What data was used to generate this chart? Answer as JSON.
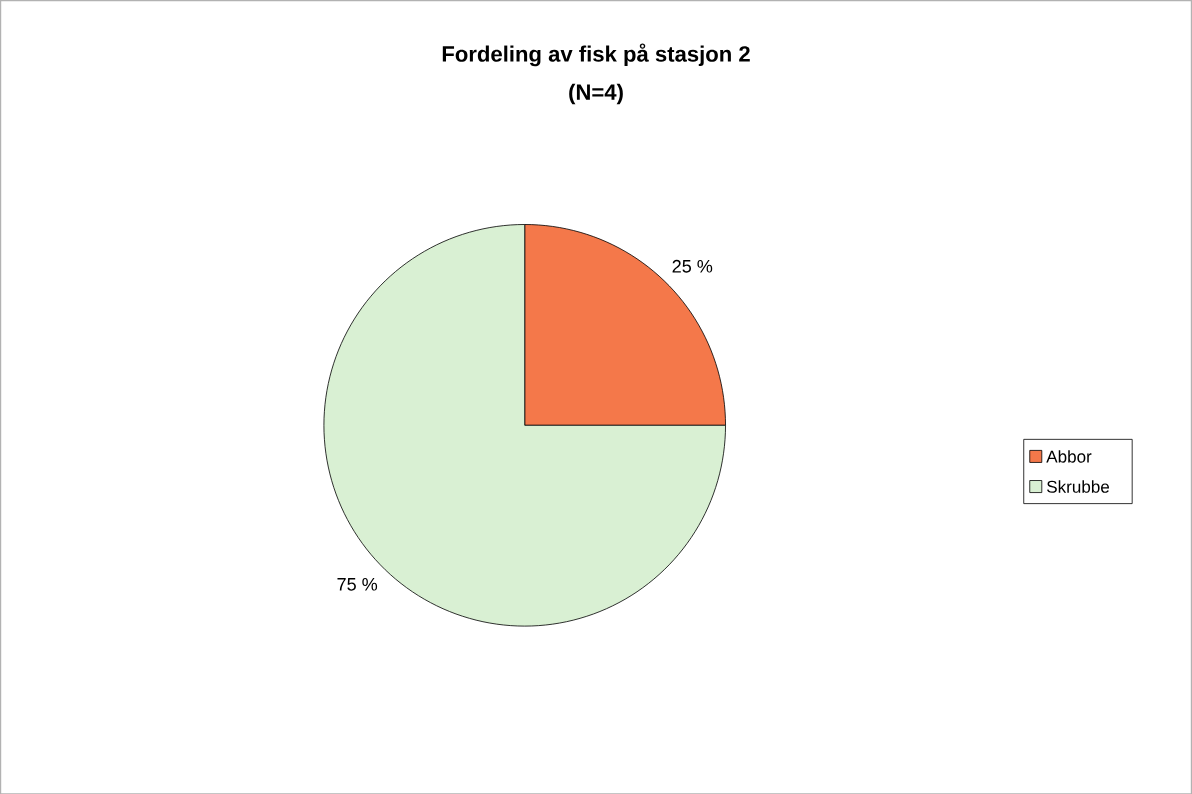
{
  "chart_data": {
    "type": "pie",
    "title": "Fordeling av fisk på stasjon 2",
    "subtitle": "(N=4)",
    "categories": [
      "Abbor",
      "Skrubbe"
    ],
    "values": [
      25,
      75
    ],
    "colors": [
      "#f4784a",
      "#d9f0d3"
    ],
    "value_labels": [
      "25 %",
      "75 %"
    ],
    "legend": "right"
  }
}
